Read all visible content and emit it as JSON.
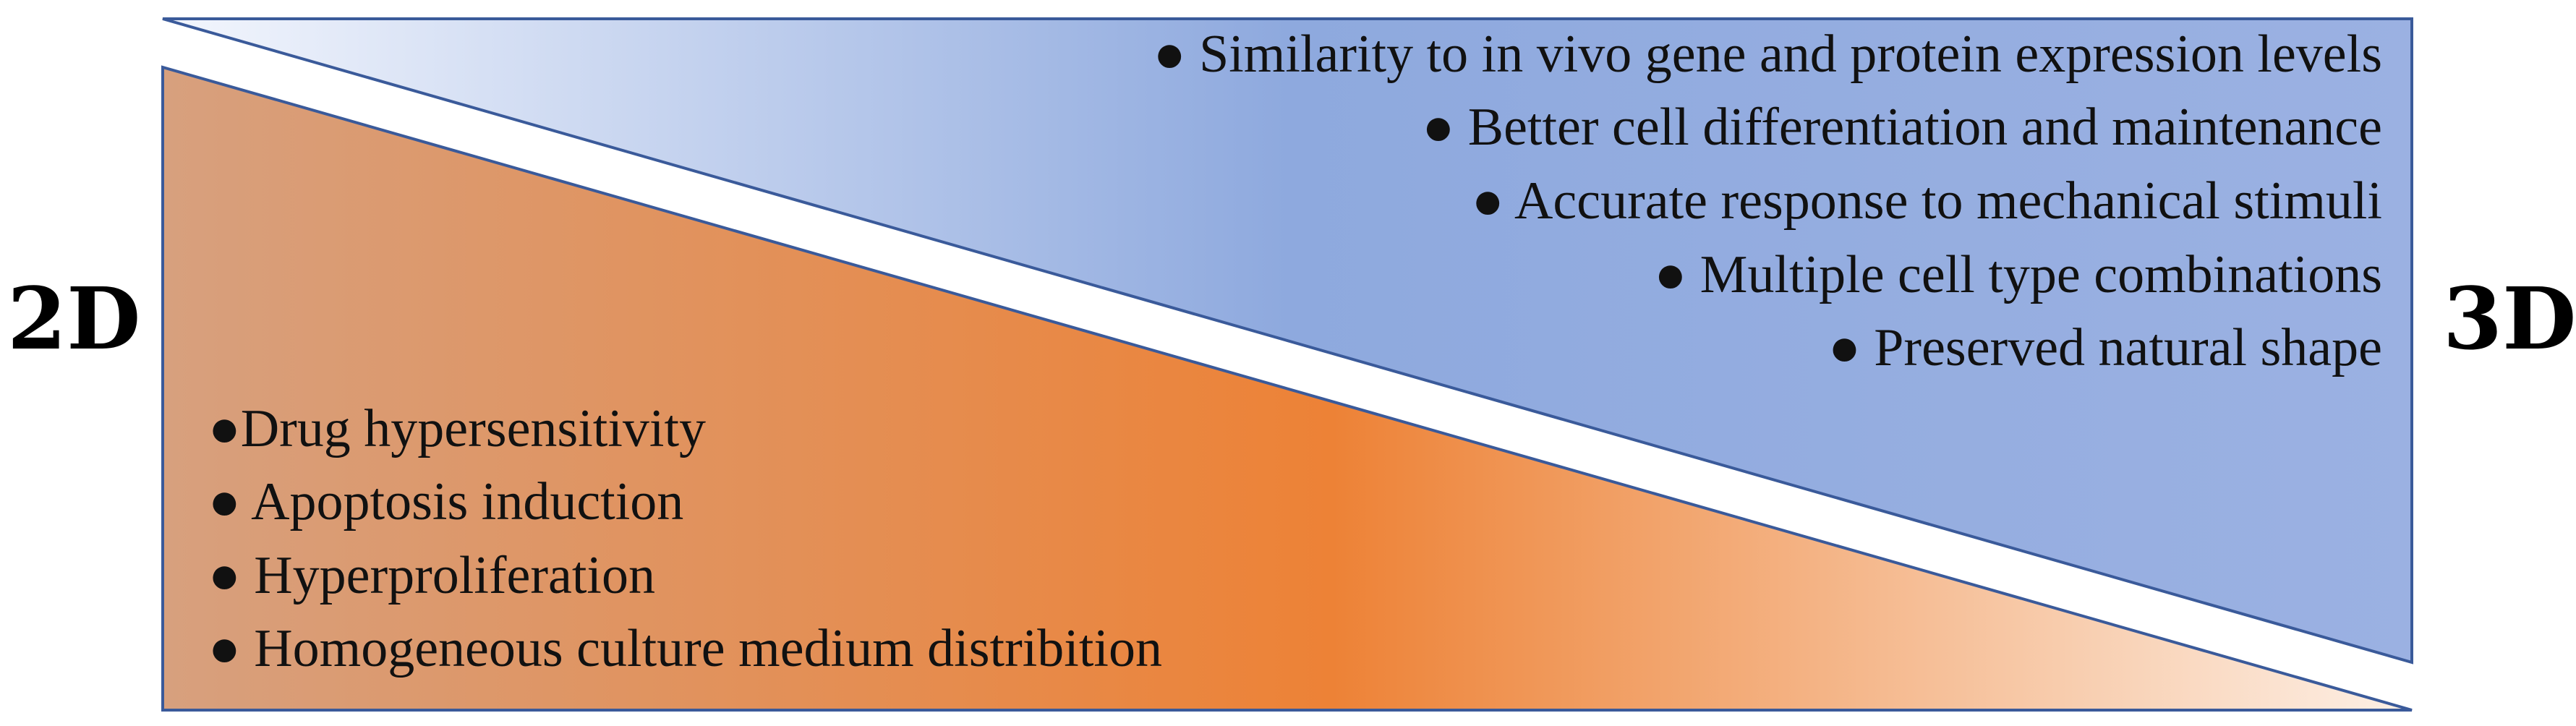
{
  "left_label": "2D",
  "right_label": "3D",
  "colors": {
    "triangle_2d_edge": "#d7a07e",
    "triangle_2d_mid": "#ed8236",
    "triangle_2d_tip": "#fdf0e6",
    "triangle_3d_tip": "#f3f6fd",
    "triangle_3d_mid": "#8ea9de",
    "triangle_3d_edge": "#9bb1e2",
    "outline": "#3a5a9a"
  },
  "items_2d": [
    "●Drug hypersensitivity",
    "● Apoptosis induction",
    "● Hyperproliferation",
    "● Homogeneous culture medium distribition"
  ],
  "items_3d": [
    "● Similarity to in vivo gene and protein expression levels",
    "● Better cell differentiation and maintenance",
    "● Accurate response to mechanical stimuli",
    "● Multiple cell type combinations",
    "● Preserved natural shape"
  ]
}
